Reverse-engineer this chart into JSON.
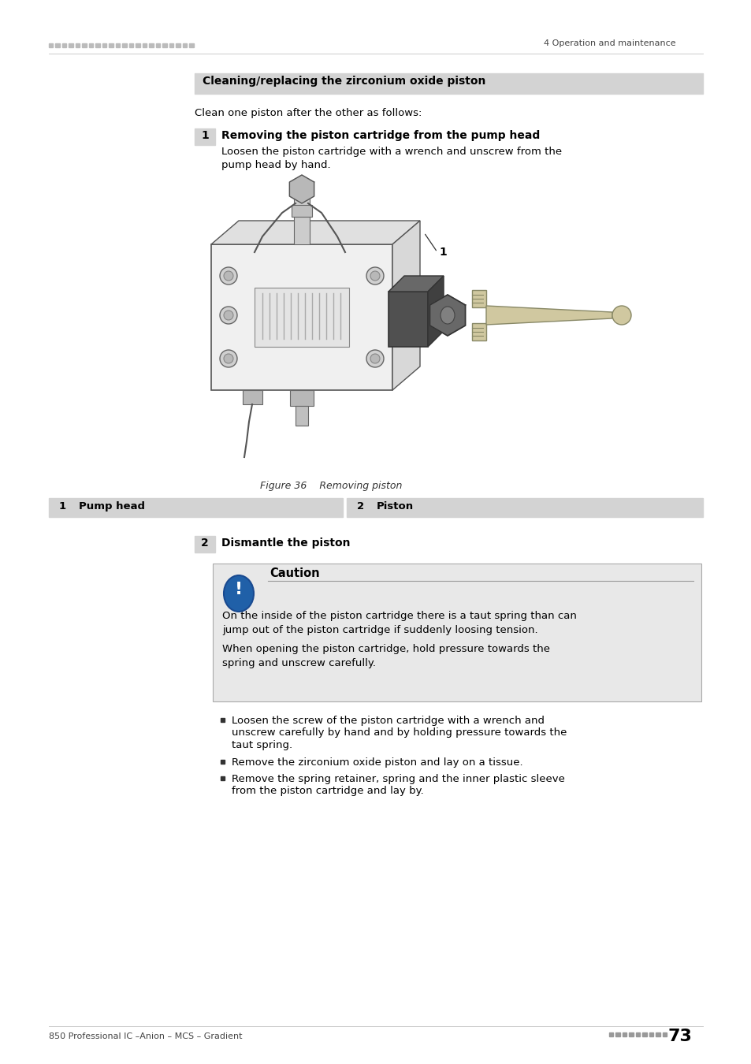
{
  "page_bg": "#ffffff",
  "header_dots_color": "#bbbbbb",
  "header_right_text": "4 Operation and maintenance",
  "footer_left_text": "850 Professional IC –Anion – MCS – Gradient",
  "footer_dots_color": "#999999",
  "footer_page_num": "73",
  "section_header_bg": "#d3d3d3",
  "section_header_text": "Cleaning/replacing the zirconium oxide piston",
  "intro_text": "Clean one piston after the other as follows:",
  "step1_num": "1",
  "step1_num_bg": "#d3d3d3",
  "step1_title": "Removing the piston cartridge from the pump head",
  "step1_desc": "Loosen the piston cartridge with a wrench and unscrew from the\npump head by hand.",
  "figure_caption": "Figure 36    Removing piston",
  "table_col1_label": "Pump head",
  "table_col2_label": "Piston",
  "table_bg": "#d3d3d3",
  "step2_num": "2",
  "step2_num_bg": "#d3d3d3",
  "step2_title": "Dismantle the piston",
  "caution_header": "Caution",
  "caution_icon_bg": "#2060a8",
  "caution_box_bg": "#e8e8e8",
  "caution_text1": "On the inside of the piston cartridge there is a taut spring than can\njump out of the piston cartridge if suddenly loosing tension.",
  "caution_text2": "When opening the piston cartridge, hold pressure towards the\nspring and unscrew carefully.",
  "bullet1a": "Loosen the screw of the piston cartridge with a wrench and",
  "bullet1b": "unscrew carefully by hand and by holding pressure towards the",
  "bullet1c": "taut spring.",
  "bullet2": "Remove the zirconium oxide piston and lay on a tissue.",
  "bullet3a": "Remove the spring retainer, spring and the inner plastic sleeve",
  "bullet3b": "from the piston cartridge and lay by."
}
